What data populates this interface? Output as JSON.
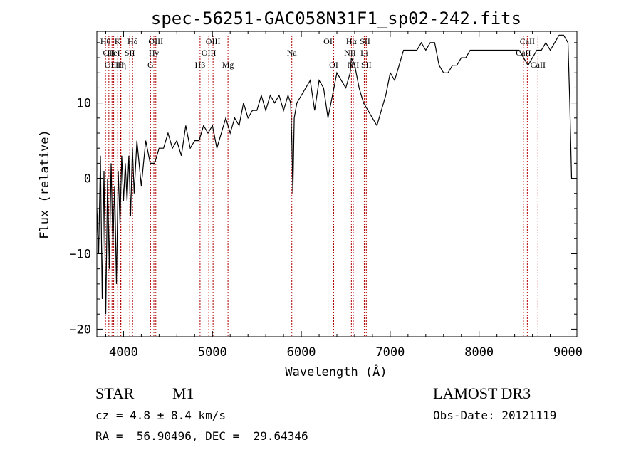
{
  "chart_data": {
    "type": "line",
    "title": "spec-56251-GAC058N31F1_sp02-242.fits",
    "xlabel": "Wavelength (Å)",
    "ylabel": "Flux (relative)",
    "xlim": [
      3700,
      9100
    ],
    "ylim": [
      -21,
      19.5
    ],
    "xticks": [
      4000,
      5000,
      6000,
      7000,
      8000,
      9000
    ],
    "xtick_labels": [
      "4000",
      "5000",
      "6000",
      "7000",
      "8000",
      "9000"
    ],
    "yticks": [
      -20,
      -10,
      0,
      10
    ],
    "ytick_labels": [
      "−20",
      "−10",
      "0",
      "10"
    ],
    "grid": false,
    "series": [
      {
        "x": [
          3700,
          3720,
          3740,
          3760,
          3780,
          3800,
          3820,
          3840,
          3860,
          3880,
          3900,
          3920,
          3940,
          3960,
          3980,
          4000,
          4020,
          4040,
          4060,
          4080,
          4100,
          4120,
          4150,
          4200,
          4250,
          4300,
          4350,
          4400,
          4450,
          4500,
          4550,
          4600,
          4650,
          4700,
          4750,
          4800,
          4850,
          4900,
          4950,
          5000,
          5050,
          5100,
          5150,
          5200,
          5250,
          5300,
          5350,
          5400,
          5450,
          5500,
          5550,
          5600,
          5650,
          5700,
          5750,
          5800,
          5850,
          5880,
          5895,
          5905,
          5920,
          5950,
          6000,
          6050,
          6100,
          6150,
          6200,
          6250,
          6300,
          6350,
          6400,
          6450,
          6500,
          6550,
          6563,
          6600,
          6650,
          6700,
          6750,
          6800,
          6850,
          6900,
          6950,
          7000,
          7050,
          7100,
          7150,
          7200,
          7250,
          7300,
          7350,
          7400,
          7450,
          7500,
          7550,
          7600,
          7650,
          7700,
          7750,
          7800,
          7850,
          7900,
          7950,
          8000,
          8050,
          8100,
          8150,
          8200,
          8250,
          8300,
          8350,
          8400,
          8450,
          8500,
          8550,
          8600,
          8650,
          8700,
          8750,
          8800,
          8850,
          8900,
          8950,
          9000,
          9020,
          9040
        ],
        "y": [
          -4,
          -10,
          3,
          -16,
          1,
          -18,
          0,
          -12,
          2,
          -9,
          -1,
          -14,
          1,
          -6,
          3,
          -3,
          2,
          -3,
          3,
          -5,
          4,
          -2,
          5,
          -1,
          5,
          2,
          2,
          4,
          4,
          6,
          4,
          5,
          3,
          7,
          4,
          5,
          5,
          7,
          6,
          7,
          4,
          6,
          8,
          6,
          8,
          7,
          10,
          8,
          9,
          9,
          11,
          9,
          11,
          10,
          11,
          9,
          11,
          10,
          4,
          -2,
          8,
          10,
          11,
          12,
          13,
          9,
          13,
          12,
          8,
          11,
          14,
          13,
          12,
          14,
          16,
          15,
          12,
          10,
          9,
          8,
          7,
          9,
          11,
          14,
          13,
          15,
          17,
          17,
          17,
          17,
          18,
          17,
          18,
          18,
          15,
          14,
          14,
          15,
          15,
          16,
          16,
          17,
          17,
          17,
          17,
          17,
          17,
          17,
          17,
          17,
          17,
          17,
          17,
          16,
          15,
          16,
          17,
          17,
          18,
          17,
          18,
          19,
          19,
          18,
          10,
          0
        ]
      }
    ],
    "lines": [
      {
        "x": 3797,
        "label": "Hθ",
        "row": 1
      },
      {
        "x": 3835,
        "label": "OII",
        "row": 2
      },
      {
        "x": 3870,
        "label": "OIII",
        "row": 3
      },
      {
        "x": 3889,
        "label": "HeI",
        "row": 2
      },
      {
        "x": 3934,
        "label": "K",
        "row": 1
      },
      {
        "x": 3970,
        "label": "Hη",
        "row": 3
      },
      {
        "x": 3969,
        "label": "H",
        "row": 3
      },
      {
        "x": 4070,
        "label": "SII",
        "row": 2
      },
      {
        "x": 4102,
        "label": "Hδ",
        "row": 1
      },
      {
        "x": 4304,
        "label": "G",
        "row": 3
      },
      {
        "x": 4341,
        "label": "Hγ",
        "row": 2
      },
      {
        "x": 4363,
        "label": "OIII",
        "row": 1
      },
      {
        "x": 4861,
        "label": "Hβ",
        "row": 3
      },
      {
        "x": 4959,
        "label": "OIII",
        "row": 2
      },
      {
        "x": 5007,
        "label": "OIII",
        "row": 1
      },
      {
        "x": 5175,
        "label": "Mg",
        "row": 3
      },
      {
        "x": 5893,
        "label": "Na",
        "row": 2
      },
      {
        "x": 6300,
        "label": "OI",
        "row": 1
      },
      {
        "x": 6364,
        "label": "OI",
        "row": 3
      },
      {
        "x": 6548,
        "label": "NII",
        "row": 2
      },
      {
        "x": 6563,
        "label": "Hα",
        "row": 1
      },
      {
        "x": 6584,
        "label": "NII",
        "row": 3
      },
      {
        "x": 6708,
        "label": "Li",
        "row": 2
      },
      {
        "x": 6717,
        "label": "SII",
        "row": 1
      },
      {
        "x": 6731,
        "label": "SII",
        "row": 3
      },
      {
        "x": 8498,
        "label": "CaII",
        "row": 2
      },
      {
        "x": 8542,
        "label": "CaII",
        "row": 1
      },
      {
        "x": 8662,
        "label": "CaII",
        "row": 3
      }
    ]
  },
  "info": {
    "object_type": "STAR",
    "subclass": "M1",
    "cz": "cz = 4.8 ± 8.4 km/s",
    "radec": "RA =  56.90496, DEC =  29.64346",
    "survey": "LAMOST DR3",
    "obs_date": "Obs-Date: 20121119"
  },
  "colors": {
    "spectrum": "#000000",
    "line_markers": "#b00000"
  }
}
